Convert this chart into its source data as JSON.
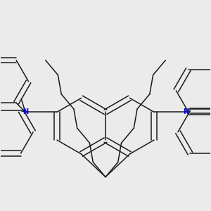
{
  "bg_color": "#ebebeb",
  "bond_color": "#1a1a1a",
  "N_color": "#0000ee",
  "lw": 1.1,
  "figsize": [
    3.0,
    3.0
  ],
  "dpi": 100,
  "xlim": [
    -2.8,
    2.8
  ],
  "ylim": [
    -2.1,
    3.2
  ]
}
